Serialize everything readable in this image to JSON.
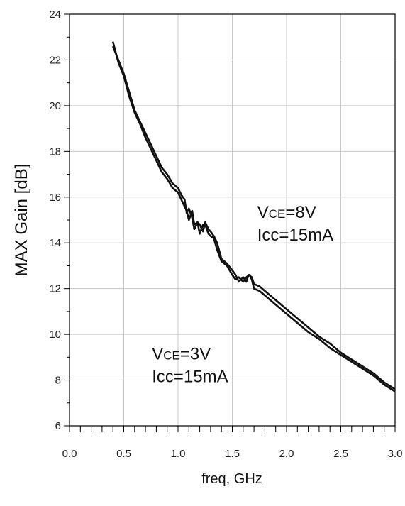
{
  "chart_data": {
    "type": "line",
    "title": "",
    "xlabel": "freq, GHz",
    "ylabel": "MAX Gain [dB]",
    "xlim": [
      0.0,
      3.0
    ],
    "ylim": [
      6,
      24
    ],
    "x_ticks": [
      "0.0",
      "0.5",
      "1.0",
      "1.5",
      "2.0",
      "2.5",
      "3.0"
    ],
    "y_ticks": [
      "6",
      "8",
      "10",
      "12",
      "14",
      "16",
      "18",
      "20",
      "22",
      "24"
    ],
    "grid": true,
    "line_color": "#111111",
    "series": [
      {
        "x": [
          0.4,
          0.45,
          0.5,
          0.55,
          0.6,
          0.65,
          0.7,
          0.75,
          0.8,
          0.85,
          0.9,
          0.95,
          1.0,
          1.05,
          1.08,
          1.1,
          1.13,
          1.15,
          1.18,
          1.2,
          1.23,
          1.25,
          1.28,
          1.3,
          1.33,
          1.36,
          1.4,
          1.45,
          1.5,
          1.53,
          1.56,
          1.6,
          1.63,
          1.66,
          1.68,
          1.7,
          1.75,
          1.8,
          1.9,
          2.0,
          2.1,
          2.2,
          2.3,
          2.4,
          2.5,
          2.6,
          2.7,
          2.8,
          2.9,
          3.0
        ],
        "y": [
          22.8,
          21.9,
          21.3,
          20.4,
          19.7,
          19.2,
          18.6,
          18.1,
          17.6,
          17.1,
          16.8,
          16.4,
          16.2,
          15.7,
          15.4,
          15.0,
          15.4,
          14.8,
          14.9,
          14.4,
          14.8,
          14.8,
          14.4,
          14.3,
          14.2,
          13.7,
          13.2,
          13.0,
          12.6,
          12.4,
          12.5,
          12.3,
          12.5,
          12.6,
          12.4,
          12.0,
          11.9,
          11.7,
          11.3,
          10.9,
          10.5,
          10.1,
          9.8,
          9.4,
          9.1,
          8.8,
          8.5,
          8.2,
          7.8,
          7.5
        ]
      },
      {
        "x": [
          0.4,
          0.45,
          0.5,
          0.55,
          0.6,
          0.65,
          0.7,
          0.75,
          0.8,
          0.85,
          0.9,
          0.95,
          1.0,
          1.03,
          1.06,
          1.08,
          1.1,
          1.13,
          1.15,
          1.18,
          1.2,
          1.23,
          1.25,
          1.28,
          1.3,
          1.33,
          1.36,
          1.4,
          1.45,
          1.5,
          1.53,
          1.56,
          1.6,
          1.63,
          1.65,
          1.68,
          1.7,
          1.75,
          1.8,
          1.9,
          2.0,
          2.1,
          2.2,
          2.3,
          2.4,
          2.5,
          2.6,
          2.7,
          2.8,
          2.9,
          3.0
        ],
        "y": [
          22.6,
          22.0,
          21.4,
          20.6,
          19.8,
          19.3,
          18.8,
          18.3,
          17.8,
          17.3,
          17.0,
          16.6,
          16.4,
          16.1,
          15.9,
          15.3,
          15.5,
          15.1,
          14.6,
          14.9,
          14.8,
          14.5,
          14.9,
          14.6,
          14.5,
          14.3,
          14.0,
          13.3,
          13.1,
          12.8,
          12.6,
          12.3,
          12.5,
          12.3,
          12.6,
          12.5,
          12.2,
          12.1,
          11.9,
          11.5,
          11.1,
          10.7,
          10.3,
          9.9,
          9.6,
          9.2,
          8.9,
          8.6,
          8.3,
          7.9,
          7.6
        ]
      }
    ],
    "annotations": [
      {
        "main": "V",
        "sub": "CE",
        "rest": "=8V",
        "line2": "Icc=15mA",
        "x": 1.73,
        "y": 15.1
      },
      {
        "main": "V",
        "sub": "CE",
        "rest": "=3V",
        "line2": "Icc=15mA",
        "x": 0.76,
        "y": 8.9
      }
    ]
  }
}
